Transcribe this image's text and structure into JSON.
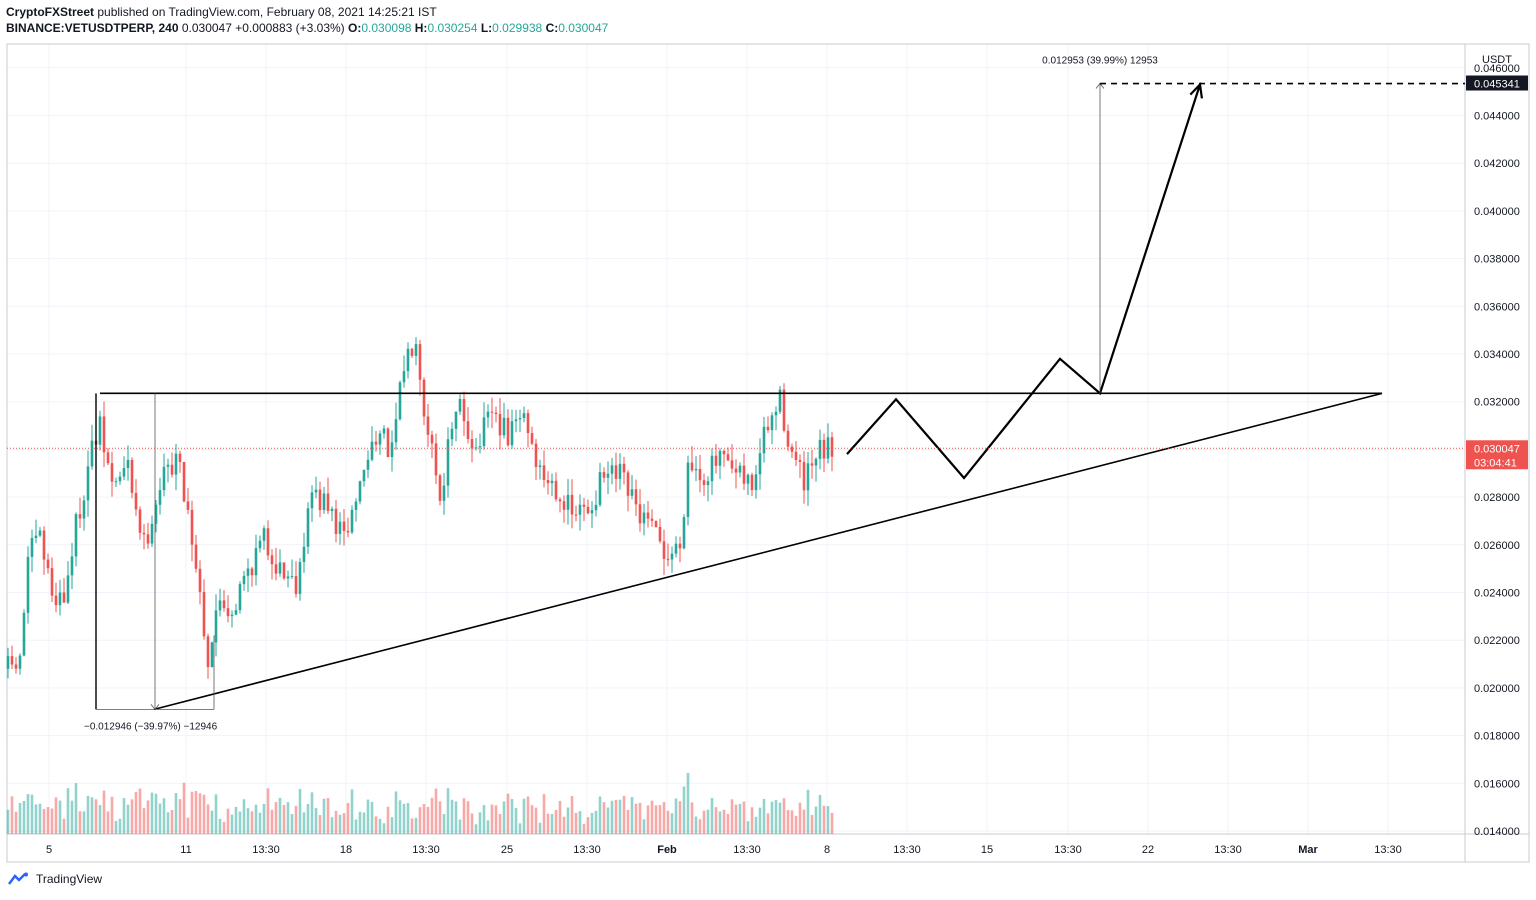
{
  "header": {
    "publisher": "CryptoFXStreet",
    "published_text": " published on TradingView.com, February 08, 2021 14:25:21 IST",
    "symbol": "BINANCE:VETUSDTPERP, 240",
    "last": "0.030047",
    "change": "+0.000883 (+3.03%)",
    "o_label": "O:",
    "o_value": "0.030098",
    "h_label": "H:",
    "h_value": "0.030254",
    "l_label": "L:",
    "l_value": "0.029938",
    "c_label": "C:",
    "c_value": "0.030047"
  },
  "footer": {
    "brand": "TradingView"
  },
  "chart_data": {
    "type": "candlestick",
    "currency_label": "USDT",
    "yticks": [
      "0.014000",
      "0.016000",
      "0.018000",
      "0.020000",
      "0.022000",
      "0.024000",
      "0.026000",
      "0.028000",
      "0.030000",
      "0.032000",
      "0.034000",
      "0.036000",
      "0.038000",
      "0.040000",
      "0.042000",
      "0.044000",
      "0.046000"
    ],
    "ylim": [
      0.014,
      0.0463
    ],
    "xticks": [
      "5",
      "11",
      "13:30",
      "18",
      "13:30",
      "25",
      "13:30",
      "Feb",
      "13:30",
      "8",
      "13:30",
      "15",
      "13:30",
      "22",
      "13:30",
      "Mar",
      "13:30"
    ],
    "bold_xticks": [
      "Feb",
      "Mar"
    ],
    "current_price": {
      "value": 0.030047,
      "label": "0.030047",
      "countdown": "03:04:41"
    },
    "target_price": {
      "value": 0.045341,
      "label": "0.045341"
    },
    "annotations": {
      "drop_measure": "−0.012946 (−39.97%) −12946",
      "rise_measure": "0.012953 (39.99%) 12953"
    },
    "resistance": 0.03235,
    "support_start": {
      "bar": 35,
      "price": 0.0191
    },
    "support_end": {
      "bar": 337,
      "price": 0.03235
    },
    "projection_path": [
      [
        202,
        0.0298
      ],
      [
        216,
        0.0321
      ],
      [
        233,
        0.0288
      ],
      [
        257,
        0.0338
      ],
      [
        267,
        0.03235
      ],
      [
        292,
        0.0453
      ]
    ],
    "drop_range": {
      "bar_start": 21,
      "bar_end": 50,
      "high": 0.03235,
      "low": 0.0191
    },
    "rise_range": {
      "bar": 267,
      "bar_end": 357,
      "low": 0.03235,
      "high": 0.045341
    },
    "anchors": [
      {
        "bar": 0,
        "price": 0.0208
      },
      {
        "bar": 3,
        "price": 0.021
      },
      {
        "bar": 5,
        "price": 0.0255
      },
      {
        "bar": 8,
        "price": 0.0262
      },
      {
        "bar": 11,
        "price": 0.024
      },
      {
        "bar": 14,
        "price": 0.0238
      },
      {
        "bar": 17,
        "price": 0.0268
      },
      {
        "bar": 21,
        "price": 0.03
      },
      {
        "bar": 23,
        "price": 0.0308
      },
      {
        "bar": 26,
        "price": 0.0285
      },
      {
        "bar": 30,
        "price": 0.0292
      },
      {
        "bar": 34,
        "price": 0.026
      },
      {
        "bar": 38,
        "price": 0.0285
      },
      {
        "bar": 42,
        "price": 0.0298
      },
      {
        "bar": 45,
        "price": 0.0275
      },
      {
        "bar": 48,
        "price": 0.024
      },
      {
        "bar": 50,
        "price": 0.0212
      },
      {
        "bar": 53,
        "price": 0.0238
      },
      {
        "bar": 56,
        "price": 0.0232
      },
      {
        "bar": 60,
        "price": 0.025
      },
      {
        "bar": 64,
        "price": 0.0262
      },
      {
        "bar": 68,
        "price": 0.025
      },
      {
        "bar": 72,
        "price": 0.0245
      },
      {
        "bar": 76,
        "price": 0.0282
      },
      {
        "bar": 80,
        "price": 0.0275
      },
      {
        "bar": 84,
        "price": 0.0262
      },
      {
        "bar": 88,
        "price": 0.0285
      },
      {
        "bar": 92,
        "price": 0.0308
      },
      {
        "bar": 96,
        "price": 0.0298
      },
      {
        "bar": 99,
        "price": 0.0335
      },
      {
        "bar": 102,
        "price": 0.035
      },
      {
        "bar": 104,
        "price": 0.0318
      },
      {
        "bar": 106,
        "price": 0.0302
      },
      {
        "bar": 108,
        "price": 0.028
      },
      {
        "bar": 110,
        "price": 0.03
      },
      {
        "bar": 113,
        "price": 0.0318
      },
      {
        "bar": 117,
        "price": 0.03
      },
      {
        "bar": 121,
        "price": 0.0315
      },
      {
        "bar": 125,
        "price": 0.0305
      },
      {
        "bar": 129,
        "price": 0.0315
      },
      {
        "bar": 133,
        "price": 0.029
      },
      {
        "bar": 137,
        "price": 0.0285
      },
      {
        "bar": 141,
        "price": 0.0272
      },
      {
        "bar": 145,
        "price": 0.0275
      },
      {
        "bar": 149,
        "price": 0.0288
      },
      {
        "bar": 153,
        "price": 0.0288
      },
      {
        "bar": 157,
        "price": 0.0275
      },
      {
        "bar": 161,
        "price": 0.0265
      },
      {
        "bar": 165,
        "price": 0.0255
      },
      {
        "bar": 168,
        "price": 0.026
      },
      {
        "bar": 170,
        "price": 0.0295
      },
      {
        "bar": 174,
        "price": 0.029
      },
      {
        "bar": 178,
        "price": 0.0295
      },
      {
        "bar": 182,
        "price": 0.0288
      },
      {
        "bar": 186,
        "price": 0.0285
      },
      {
        "bar": 189,
        "price": 0.0305
      },
      {
        "bar": 193,
        "price": 0.032
      },
      {
        "bar": 196,
        "price": 0.0298
      },
      {
        "bar": 199,
        "price": 0.0285
      },
      {
        "bar": 203,
        "price": 0.0298
      },
      {
        "bar": 206,
        "price": 0.03
      }
    ]
  }
}
